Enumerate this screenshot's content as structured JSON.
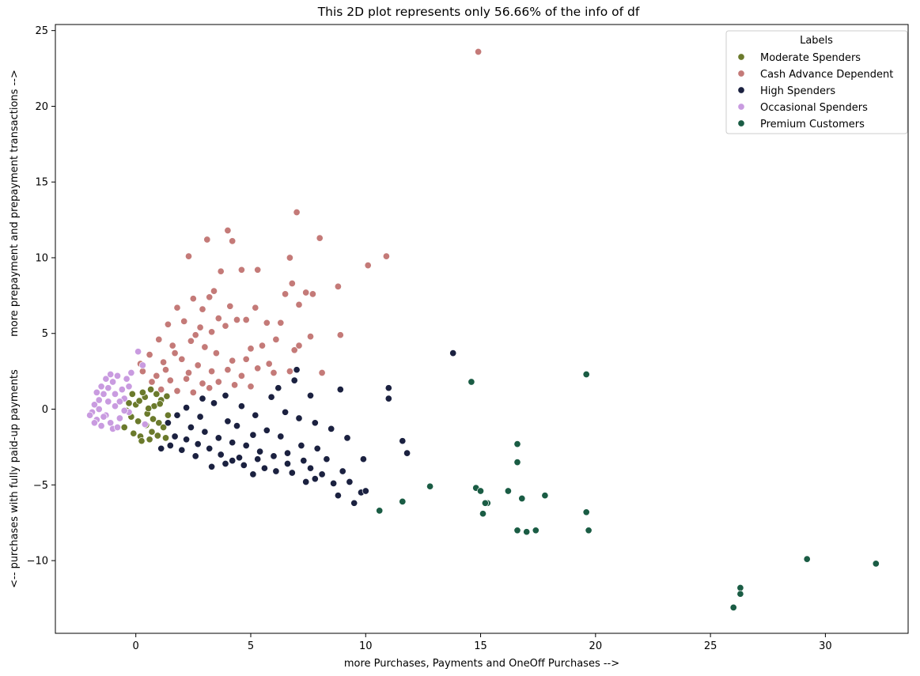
{
  "chart_data": {
    "type": "scatter",
    "title": "This 2D plot represents only 56.66% of the info of df",
    "xlabel": "more Purchases, Payments and OneOff Purchases -->",
    "ylabel": "<-- purchases with fully paid-up payments          more prepayment and prepayment transactions -->",
    "xlim": [
      -3.5,
      33.6
    ],
    "ylim": [
      -14.8,
      25.4
    ],
    "xticks": [
      0,
      5,
      10,
      15,
      20,
      25,
      30
    ],
    "yticks": [
      -10,
      -5,
      0,
      5,
      10,
      15,
      20,
      25
    ],
    "grid": false,
    "legend": {
      "title": "Labels",
      "position": "top-right"
    },
    "series": [
      {
        "name": "Moderate Spenders",
        "color": "#6b7a2c",
        "points": [
          [
            -0.5,
            -1.2
          ],
          [
            -0.2,
            -0.5
          ],
          [
            0.0,
            0.3
          ],
          [
            0.2,
            -1.8
          ],
          [
            0.4,
            0.8
          ],
          [
            0.5,
            -0.3
          ],
          [
            0.7,
            -1.5
          ],
          [
            0.8,
            0.2
          ],
          [
            1.0,
            -0.9
          ],
          [
            1.1,
            0.6
          ],
          [
            1.3,
            -1.9
          ],
          [
            1.4,
            -0.4
          ],
          [
            0.3,
            1.1
          ],
          [
            -0.1,
            -1.6
          ],
          [
            0.6,
            -2.0
          ],
          [
            0.9,
            1.0
          ],
          [
            1.2,
            -1.2
          ],
          [
            0.1,
            -0.8
          ],
          [
            -0.3,
            0.4
          ],
          [
            0.45,
            -1.05
          ],
          [
            0.75,
            -0.65
          ],
          [
            1.05,
            0.35
          ],
          [
            0.15,
            0.55
          ],
          [
            -0.4,
            -0.1
          ],
          [
            1.35,
            0.85
          ],
          [
            0.65,
            1.3
          ],
          [
            0.25,
            -2.1
          ],
          [
            0.95,
            -1.75
          ],
          [
            -0.15,
            1.0
          ],
          [
            0.55,
            0.05
          ]
        ]
      },
      {
        "name": "Cash Advance Dependent",
        "color": "#c47a78",
        "points": [
          [
            14.9,
            23.6
          ],
          [
            7.0,
            13.0
          ],
          [
            4.0,
            11.8
          ],
          [
            3.1,
            11.2
          ],
          [
            4.2,
            11.1
          ],
          [
            8.0,
            11.3
          ],
          [
            2.3,
            10.1
          ],
          [
            6.7,
            10.0
          ],
          [
            10.1,
            9.5
          ],
          [
            10.9,
            10.1
          ],
          [
            3.7,
            9.1
          ],
          [
            4.6,
            9.2
          ],
          [
            5.3,
            9.2
          ],
          [
            6.5,
            7.6
          ],
          [
            6.8,
            8.3
          ],
          [
            7.4,
            7.7
          ],
          [
            7.7,
            7.6
          ],
          [
            8.8,
            8.1
          ],
          [
            3.4,
            7.8
          ],
          [
            3.2,
            7.4
          ],
          [
            2.5,
            7.3
          ],
          [
            1.8,
            6.7
          ],
          [
            2.9,
            6.6
          ],
          [
            4.1,
            6.8
          ],
          [
            5.2,
            6.7
          ],
          [
            7.1,
            6.9
          ],
          [
            3.6,
            6.0
          ],
          [
            4.4,
            5.9
          ],
          [
            2.1,
            5.8
          ],
          [
            1.4,
            5.6
          ],
          [
            2.8,
            5.4
          ],
          [
            3.9,
            5.5
          ],
          [
            5.7,
            5.7
          ],
          [
            6.3,
            5.7
          ],
          [
            6.1,
            4.6
          ],
          [
            7.6,
            4.8
          ],
          [
            8.9,
            4.9
          ],
          [
            5.0,
            4.0
          ],
          [
            5.5,
            4.2
          ],
          [
            6.9,
            3.9
          ],
          [
            7.1,
            4.2
          ],
          [
            4.8,
            3.3
          ],
          [
            5.8,
            3.0
          ],
          [
            1.0,
            4.6
          ],
          [
            1.6,
            4.2
          ],
          [
            2.4,
            4.5
          ],
          [
            3.0,
            4.1
          ],
          [
            3.5,
            3.7
          ],
          [
            4.2,
            3.2
          ],
          [
            0.6,
            3.6
          ],
          [
            1.2,
            3.1
          ],
          [
            2.0,
            3.3
          ],
          [
            2.7,
            2.9
          ],
          [
            3.3,
            2.5
          ],
          [
            4.0,
            2.6
          ],
          [
            4.6,
            2.2
          ],
          [
            5.3,
            2.7
          ],
          [
            6.0,
            2.4
          ],
          [
            6.7,
            2.5
          ],
          [
            8.1,
            2.4
          ],
          [
            0.3,
            2.5
          ],
          [
            0.9,
            2.2
          ],
          [
            1.5,
            1.9
          ],
          [
            2.2,
            2.0
          ],
          [
            2.9,
            1.7
          ],
          [
            3.6,
            1.8
          ],
          [
            4.3,
            1.6
          ],
          [
            5.0,
            1.5
          ],
          [
            1.1,
            1.3
          ],
          [
            1.8,
            1.2
          ],
          [
            2.5,
            1.1
          ],
          [
            3.2,
            1.4
          ],
          [
            0.2,
            3.0
          ],
          [
            1.7,
            3.7
          ],
          [
            2.6,
            4.9
          ],
          [
            3.3,
            5.1
          ],
          [
            4.8,
            5.9
          ],
          [
            1.3,
            2.6
          ],
          [
            0.7,
            1.8
          ],
          [
            2.3,
            2.4
          ]
        ]
      },
      {
        "name": "High Spenders",
        "color": "#1b2140",
        "points": [
          [
            13.8,
            3.7
          ],
          [
            11.0,
            1.4
          ],
          [
            11.0,
            0.7
          ],
          [
            8.9,
            1.3
          ],
          [
            7.6,
            0.9
          ],
          [
            7.0,
            2.6
          ],
          [
            6.9,
            1.9
          ],
          [
            6.2,
            1.4
          ],
          [
            2.2,
            0.1
          ],
          [
            2.8,
            -0.5
          ],
          [
            3.4,
            0.4
          ],
          [
            4.0,
            -0.8
          ],
          [
            4.6,
            0.2
          ],
          [
            5.2,
            -0.4
          ],
          [
            5.9,
            0.8
          ],
          [
            6.5,
            -0.2
          ],
          [
            7.1,
            -0.6
          ],
          [
            7.8,
            -0.9
          ],
          [
            8.5,
            -1.3
          ],
          [
            9.2,
            -1.9
          ],
          [
            9.9,
            -3.3
          ],
          [
            11.6,
            -2.1
          ],
          [
            11.8,
            -2.9
          ],
          [
            9.3,
            -4.8
          ],
          [
            9.8,
            -5.5
          ],
          [
            9.5,
            -6.2
          ],
          [
            8.8,
            -5.7
          ],
          [
            8.6,
            -4.9
          ],
          [
            7.8,
            -4.6
          ],
          [
            7.4,
            -4.8
          ],
          [
            7.3,
            -3.4
          ],
          [
            6.6,
            -3.6
          ],
          [
            6.1,
            -4.1
          ],
          [
            5.6,
            -3.9
          ],
          [
            5.1,
            -4.3
          ],
          [
            4.7,
            -3.7
          ],
          [
            4.2,
            -3.4
          ],
          [
            3.7,
            -3.0
          ],
          [
            3.2,
            -2.6
          ],
          [
            2.7,
            -2.3
          ],
          [
            2.2,
            -2.0
          ],
          [
            1.7,
            -1.8
          ],
          [
            1.4,
            -0.9
          ],
          [
            1.8,
            -0.4
          ],
          [
            2.4,
            -1.2
          ],
          [
            3.0,
            -1.5
          ],
          [
            3.6,
            -1.9
          ],
          [
            4.2,
            -2.2
          ],
          [
            4.8,
            -2.4
          ],
          [
            5.4,
            -2.8
          ],
          [
            6.0,
            -3.1
          ],
          [
            6.6,
            -2.9
          ],
          [
            7.2,
            -2.4
          ],
          [
            7.9,
            -2.6
          ],
          [
            8.3,
            -3.3
          ],
          [
            9.0,
            -4.1
          ],
          [
            10.0,
            -5.4
          ],
          [
            5.7,
            -1.4
          ],
          [
            6.3,
            -1.8
          ],
          [
            2.9,
            0.7
          ],
          [
            3.9,
            0.9
          ],
          [
            4.4,
            -1.1
          ],
          [
            5.1,
            -1.7
          ],
          [
            1.1,
            -2.6
          ],
          [
            1.5,
            -2.4
          ],
          [
            2.0,
            -2.7
          ],
          [
            2.6,
            -3.1
          ],
          [
            3.3,
            -3.8
          ],
          [
            3.9,
            -3.6
          ],
          [
            4.5,
            -3.2
          ],
          [
            5.3,
            -3.3
          ],
          [
            6.8,
            -4.2
          ],
          [
            7.6,
            -3.9
          ],
          [
            8.1,
            -4.3
          ]
        ]
      },
      {
        "name": "Occasional Spenders",
        "color": "#c99be0",
        "points": [
          [
            -1.9,
            -0.2
          ],
          [
            -1.8,
            0.3
          ],
          [
            -1.7,
            -0.7
          ],
          [
            -1.6,
            0.6
          ],
          [
            -1.5,
            -1.1
          ],
          [
            -1.4,
            1.0
          ],
          [
            -1.3,
            -0.4
          ],
          [
            -1.2,
            1.4
          ],
          [
            -1.1,
            -0.9
          ],
          [
            -1.0,
            1.8
          ],
          [
            -0.9,
            0.2
          ],
          [
            -0.8,
            2.2
          ],
          [
            -0.7,
            -0.6
          ],
          [
            -0.6,
            1.3
          ],
          [
            -0.5,
            0.7
          ],
          [
            -0.4,
            2.0
          ],
          [
            -0.3,
            -0.2
          ],
          [
            0.1,
            3.8
          ],
          [
            0.3,
            2.9
          ],
          [
            -1.8,
            -0.9
          ],
          [
            -1.6,
            0.0
          ],
          [
            -1.4,
            -0.5
          ],
          [
            -1.2,
            0.5
          ],
          [
            -1.0,
            -1.3
          ],
          [
            -0.9,
            1.0
          ],
          [
            -0.7,
            0.5
          ],
          [
            -0.5,
            -0.1
          ],
          [
            -0.3,
            1.5
          ],
          [
            -0.2,
            2.4
          ],
          [
            -1.5,
            1.5
          ],
          [
            -1.3,
            2.0
          ],
          [
            -1.1,
            2.3
          ],
          [
            -1.7,
            1.1
          ],
          [
            -2.0,
            -0.4
          ],
          [
            -0.8,
            -1.2
          ],
          [
            0.4,
            -1.0
          ]
        ]
      },
      {
        "name": "Premium Customers",
        "color": "#1a5c44",
        "points": [
          [
            14.6,
            1.8
          ],
          [
            19.6,
            2.3
          ],
          [
            16.6,
            -2.3
          ],
          [
            16.6,
            -3.5
          ],
          [
            12.8,
            -5.1
          ],
          [
            14.8,
            -5.2
          ],
          [
            15.0,
            -5.4
          ],
          [
            15.3,
            -6.2
          ],
          [
            15.2,
            -6.2
          ],
          [
            16.8,
            -5.9
          ],
          [
            16.2,
            -5.4
          ],
          [
            17.8,
            -5.7
          ],
          [
            11.6,
            -6.1
          ],
          [
            10.6,
            -6.7
          ],
          [
            15.1,
            -6.9
          ],
          [
            19.6,
            -6.8
          ],
          [
            16.6,
            -8.0
          ],
          [
            17.0,
            -8.1
          ],
          [
            17.4,
            -8.0
          ],
          [
            19.7,
            -8.0
          ],
          [
            29.2,
            -9.9
          ],
          [
            32.2,
            -10.2
          ],
          [
            26.3,
            -11.8
          ],
          [
            26.3,
            -12.2
          ],
          [
            26.0,
            -13.1
          ]
        ]
      }
    ]
  }
}
